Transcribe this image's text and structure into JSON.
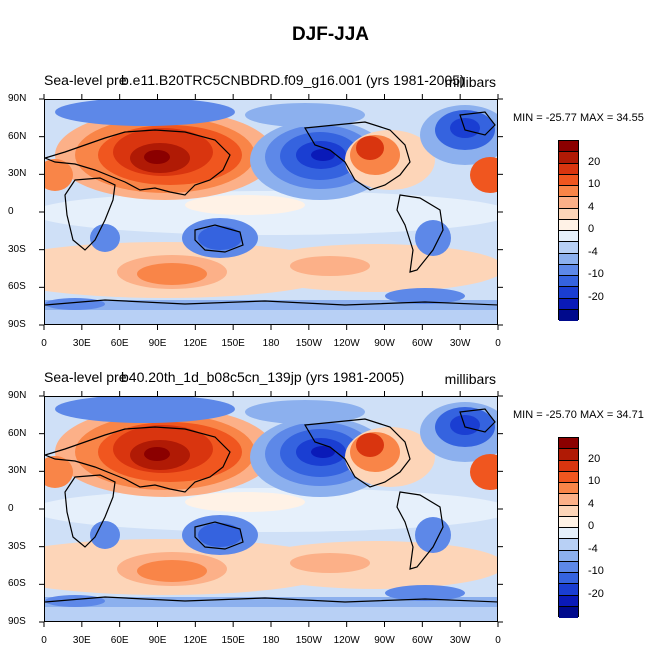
{
  "title": "DJF-JJA",
  "panels": [
    {
      "left_string": "Sea-level pre",
      "center_string": "b.e11.B20TRC5CNBDRD.f09_g16.001 (yrs 1981-2005)",
      "units": "millibars",
      "minmax": "MIN = -25.77 MAX =  34.55"
    },
    {
      "left_string": "Sea-level pre",
      "center_string": "b40.20th_1d_b08c5cn_139jp (yrs 1981-2005)",
      "units": "millibars",
      "minmax": "MIN = -25.70 MAX =  34.71"
    }
  ],
  "lat_ticks": [
    "90N",
    "60N",
    "30N",
    "0",
    "30S",
    "60S",
    "90S"
  ],
  "lon_ticks": [
    "0",
    "30E",
    "60E",
    "90E",
    "120E",
    "150E",
    "180",
    "150W",
    "120W",
    "90W",
    "60W",
    "30W",
    "0"
  ],
  "colorbar": {
    "labels": [
      "20",
      "10",
      "4",
      "0",
      "-4",
      "-10",
      "-20"
    ],
    "colors": [
      "#8b0000",
      "#b01a05",
      "#d9350f",
      "#f0561f",
      "#f98548",
      "#fcb088",
      "#fdd5b8",
      "#fff2e6",
      "#e6f0fb",
      "#b8d0f5",
      "#8cb0ee",
      "#5d88e8",
      "#3563df",
      "#1a3ed2",
      "#0a1ab8",
      "#000a8c"
    ]
  },
  "map_features": {
    "ocean_base": "#cfe0f7",
    "positive_centers": [
      "Asian continent (Siberian High)",
      "North America",
      "Southern Hemisphere 30S-60S band"
    ],
    "negative_centers": [
      "North Pacific (Aleutian Low)",
      "North Atlantic (Icelandic Low)",
      "Australia",
      "Antarctic band"
    ]
  }
}
